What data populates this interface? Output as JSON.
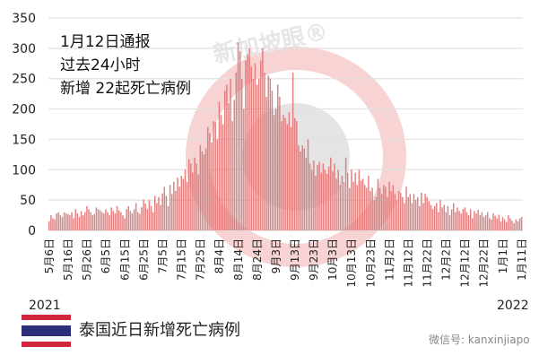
{
  "chart_data": {
    "type": "bar",
    "title": "泰国近日新增死亡病例",
    "annotation": [
      "1月12日通报",
      "过去24小时",
      "新增 22起死亡病例"
    ],
    "ylim": [
      0,
      350
    ],
    "yticks": [
      0,
      50,
      100,
      150,
      200,
      250,
      300,
      350
    ],
    "grid": true,
    "x_start": "2021-05-06",
    "x_end": "2022-01-11",
    "xtick_labels": [
      "5月6日",
      "5月16日",
      "5月26日",
      "6月5日",
      "6月15日",
      "6月25日",
      "7月5日",
      "7月15日",
      "7月25日",
      "8月4日",
      "8月14日",
      "8月24日",
      "9月3日",
      "9月13日",
      "9月23日",
      "10月3日",
      "10月13日",
      "10月23日",
      "11月2日",
      "11月12日",
      "11月22日",
      "12月2日",
      "12月12日",
      "12月22日",
      "1月1日",
      "1月11日"
    ],
    "year_labels": [
      "2021",
      "2022"
    ],
    "bar_color": "#e07272",
    "values": [
      15,
      25,
      20,
      18,
      28,
      30,
      25,
      22,
      30,
      28,
      27,
      25,
      30,
      20,
      35,
      28,
      22,
      32,
      25,
      30,
      40,
      35,
      30,
      25,
      27,
      38,
      35,
      33,
      30,
      28,
      35,
      30,
      25,
      38,
      32,
      28,
      40,
      33,
      30,
      25,
      20,
      35,
      40,
      32,
      28,
      35,
      45,
      30,
      27,
      38,
      51,
      44,
      35,
      50,
      40,
      30,
      57,
      45,
      55,
      42,
      61,
      72,
      57,
      40,
      75,
      60,
      80,
      65,
      87,
      72,
      90,
      85,
      100,
      80,
      117,
      110,
      95,
      120,
      110,
      92,
      140,
      130,
      125,
      135,
      170,
      160,
      145,
      180,
      178,
      150,
      212,
      190,
      175,
      230,
      240,
      210,
      250,
      180,
      215,
      260,
      310,
      295,
      250,
      200,
      280,
      290,
      300,
      270,
      250,
      275,
      240,
      250,
      280,
      300,
      260,
      220,
      255,
      250,
      230,
      190,
      200,
      240,
      220,
      180,
      190,
      185,
      175,
      195,
      170,
      260,
      185,
      180,
      140,
      130,
      140,
      135,
      120,
      150,
      110,
      100,
      115,
      90,
      108,
      113,
      95,
      110,
      100,
      93,
      105,
      120,
      97,
      110,
      85,
      100,
      75,
      90,
      80,
      120,
      95,
      70,
      100,
      80,
      95,
      75,
      100,
      82,
      85,
      75,
      70,
      90,
      65,
      70,
      50,
      55,
      85,
      70,
      60,
      75,
      72,
      55,
      80,
      65,
      75,
      60,
      50,
      65,
      62,
      55,
      45,
      72,
      55,
      60,
      45,
      60,
      50,
      55,
      40,
      62,
      45,
      60,
      55,
      48,
      42,
      35,
      40,
      45,
      30,
      50,
      38,
      42,
      30,
      40,
      25,
      35,
      45,
      30,
      38,
      32,
      28,
      35,
      38,
      30,
      25,
      35,
      20,
      32,
      28,
      34,
      25,
      30,
      22,
      25,
      30,
      20,
      18,
      28,
      24,
      20,
      26,
      15,
      22,
      18,
      14,
      25,
      20,
      16,
      12,
      18,
      15,
      20,
      22
    ]
  },
  "watermark": {
    "brand": "新加坡眼®",
    "wechat": "微信号: kanxinjiapo"
  },
  "flag_icon": "thailand-flag"
}
